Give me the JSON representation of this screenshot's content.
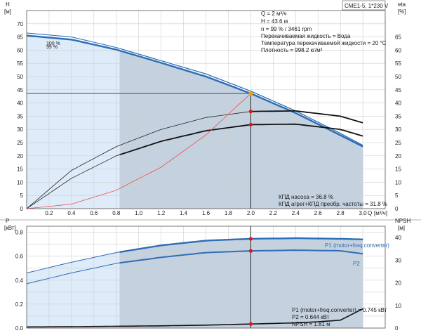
{
  "model_label": "CME1-5, 1*230 V",
  "chart_data": [
    {
      "type": "line",
      "panel": "head-efficiency",
      "ylabel_left": "H",
      "ylabel_left_unit": "[м]",
      "ylabel_right": "eta",
      "ylabel_right_unit": "[%]",
      "xlabel": "Q",
      "xlabel_unit": "[м³/ч]",
      "xlim": [
        0,
        3.2
      ],
      "ylim": [
        0,
        75
      ],
      "x_ticks": [
        "0.2",
        "0.4",
        "0.6",
        "0.8",
        "1.0",
        "1.2",
        "1.4",
        "1.6",
        "1.8",
        "2.0",
        "2.2",
        "2.4",
        "2.6",
        "2.8",
        "3.0"
      ],
      "y_ticks": [
        "0",
        "5",
        "10",
        "15",
        "20",
        "25",
        "30",
        "35",
        "40",
        "45",
        "50",
        "55",
        "60",
        "65",
        "70"
      ],
      "y_ticks_right": [
        "0",
        "5",
        "10",
        "15",
        "20",
        "25",
        "30",
        "35",
        "40",
        "45",
        "50",
        "55",
        "60",
        "65"
      ],
      "grid": true,
      "curve_labels": [
        "100 %",
        "99 %"
      ],
      "info_lines": [
        "Q = 2 м³/ч",
        "H = 43.6 м",
        "n = 99 % / 3461 rpm",
        "Перекачиваемая жидкость = Вода",
        "Температура перекачиваемой жидкости = 20 °C",
        "Плотность = 998.2 кг/м³"
      ],
      "bottom_lines": [
        "КПД насоса = 36.8 %",
        "КПД агрег+КПД преобр. частоты = 31.8 %"
      ],
      "duty_point": {
        "x": 2.0,
        "h": 43.6,
        "eta_pump": 36.8,
        "eta_total": 31.8
      },
      "series": [
        {
          "name": "100 %",
          "x": [
            0,
            0.4,
            0.8,
            1.2,
            1.6,
            2.0,
            2.4,
            2.8,
            3.0
          ],
          "values": [
            66.5,
            65.0,
            61.0,
            56.0,
            51.0,
            44.5,
            37.0,
            28.5,
            24.0
          ]
        },
        {
          "name": "99 %",
          "x": [
            0,
            0.4,
            0.8,
            1.2,
            1.6,
            2.0,
            2.4,
            2.8,
            3.0
          ],
          "values": [
            65.5,
            64.0,
            60.2,
            55.2,
            50.0,
            43.6,
            36.2,
            27.8,
            23.5
          ]
        },
        {
          "name": "eta pump",
          "x": [
            0,
            0.4,
            0.8,
            1.2,
            1.6,
            2.0,
            2.4,
            2.8,
            3.0
          ],
          "values": [
            0,
            14.5,
            23.5,
            30.0,
            34.5,
            36.8,
            37.0,
            35.0,
            32.5
          ]
        },
        {
          "name": "eta total",
          "x": [
            0,
            0.4,
            0.8,
            1.2,
            1.6,
            2.0,
            2.4,
            2.8,
            3.0
          ],
          "values": [
            0,
            11.5,
            20.0,
            25.5,
            29.5,
            31.8,
            32.0,
            30.0,
            27.5
          ]
        },
        {
          "name": "system curve",
          "x": [
            0,
            0.4,
            0.8,
            1.2,
            1.6,
            2.0
          ],
          "values": [
            0,
            1.7,
            7.0,
            15.7,
            27.9,
            43.6
          ]
        }
      ]
    },
    {
      "type": "line",
      "panel": "power-npsh",
      "ylabel_left": "P",
      "ylabel_left_unit": "[кВт]",
      "ylabel_right": "NPSH",
      "ylabel_right_unit": "[м]",
      "xlim": [
        0,
        3.2
      ],
      "ylim": [
        0,
        0.85
      ],
      "y_ticks": [
        "0.0",
        "0.2",
        "0.4",
        "0.6",
        "0.8"
      ],
      "y_ticks_right": [
        "0",
        "10",
        "20",
        "30",
        "40"
      ],
      "grid": true,
      "curve_labels": [
        "P1 (motor+freq.converter)",
        "P2"
      ],
      "bottom_lines": [
        "P1 (motor+freq.converter) = 0.745 кВт",
        "P2 = 0.644 кВт",
        "NPSH = 1.81 м"
      ],
      "duty_point": {
        "x": 2.0,
        "p1": 0.745,
        "p2": 0.644,
        "npsh": 1.81
      },
      "series": [
        {
          "name": "P1 (motor+freq.converter)",
          "x": [
            0,
            0.4,
            0.8,
            1.2,
            1.6,
            2.0,
            2.4,
            2.8,
            3.0
          ],
          "values": [
            0.46,
            0.55,
            0.63,
            0.69,
            0.73,
            0.745,
            0.75,
            0.745,
            0.74
          ]
        },
        {
          "name": "P2",
          "x": [
            0,
            0.4,
            0.8,
            1.2,
            1.6,
            2.0,
            2.4,
            2.8,
            3.0
          ],
          "values": [
            0.37,
            0.46,
            0.54,
            0.59,
            0.63,
            0.644,
            0.65,
            0.645,
            0.62
          ]
        },
        {
          "name": "NPSH",
          "x": [
            0,
            0.4,
            0.8,
            1.2,
            1.6,
            2.0,
            2.4,
            2.6,
            2.8,
            3.0
          ],
          "values": [
            0.5,
            0.6,
            0.8,
            1.0,
            1.3,
            1.81,
            2.3,
            2.8,
            3.5,
            8.5
          ]
        }
      ]
    }
  ],
  "colors": {
    "main_region": "#c4d2e0",
    "light_region": "#deebf8",
    "head_curve": "#2f6db6",
    "duty_point": "#e81010",
    "duty_marker": "#f5a000",
    "system_curve": "#f05050",
    "grid": "#cfcfcf"
  }
}
